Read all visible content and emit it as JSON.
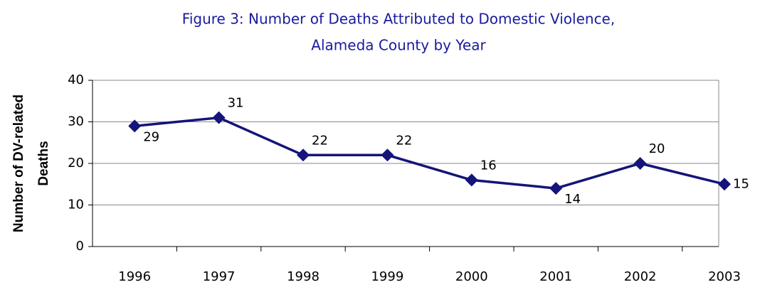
{
  "chart_data": {
    "type": "line",
    "title": [
      "Figure 3: Number of Deaths Attributed to Domestic Violence,",
      "Alameda County by Year"
    ],
    "ylabel": [
      "Number of DV-related",
      "Deaths"
    ],
    "categories": [
      "1996",
      "1997",
      "1998",
      "1999",
      "2000",
      "2001",
      "2002",
      "2003"
    ],
    "series": [
      {
        "name": "Deaths",
        "color": "#14147a",
        "values": [
          29,
          31,
          22,
          22,
          16,
          14,
          20,
          15
        ]
      }
    ],
    "ylim": [
      0,
      40
    ],
    "yticks": [
      0,
      10,
      20,
      30,
      40
    ],
    "grid": true
  }
}
